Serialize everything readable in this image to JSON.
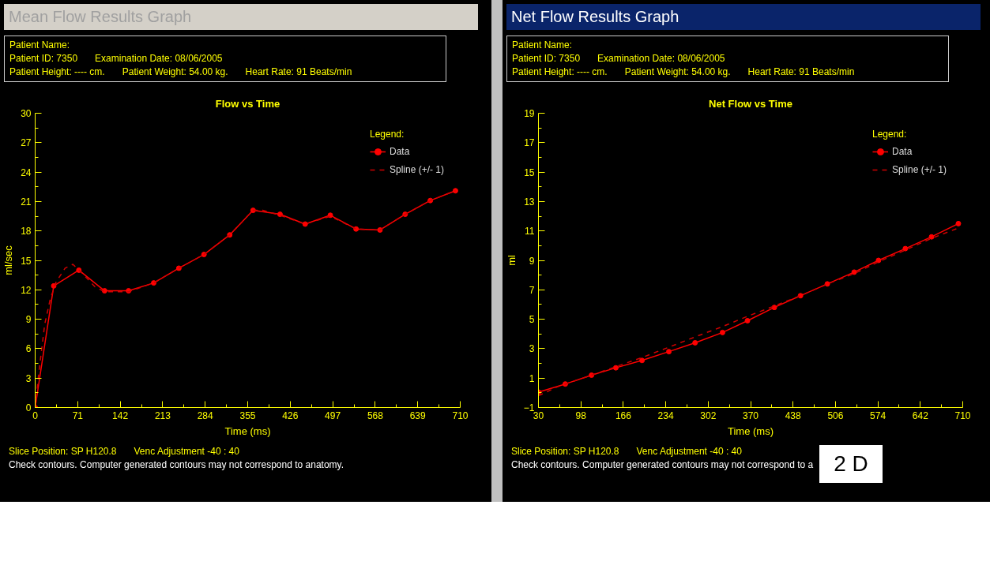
{
  "chart_data": [
    {
      "type": "line",
      "title": "Flow vs Time",
      "xlabel": "Time (ms)",
      "ylabel": "ml/sec",
      "legend_title": "Legend:",
      "legend": "top right",
      "grid": false,
      "xlim": [
        0,
        710
      ],
      "xticks": [
        0,
        71,
        142,
        213,
        284,
        355,
        426,
        497,
        568,
        639,
        710
      ],
      "ylim": [
        0,
        30
      ],
      "yticks": [
        0,
        3,
        6,
        9,
        12,
        15,
        18,
        21,
        24,
        27,
        30
      ],
      "series": [
        {
          "name": "Data",
          "color": "#ff0000",
          "marker": "circle",
          "line_style": "solid",
          "x": [
            0,
            31,
            73,
            116,
            156,
            198,
            240,
            282,
            325,
            364,
            409,
            451,
            493,
            536,
            576,
            618,
            660,
            702
          ],
          "values": [
            0,
            12.4,
            14.0,
            11.9,
            11.9,
            12.7,
            14.2,
            15.6,
            17.6,
            20.1,
            19.7,
            18.7,
            19.6,
            18.2,
            18.1,
            19.7,
            21.1,
            22.1
          ]
        },
        {
          "name": "Spline (+/- 1)",
          "color": "#d00000",
          "marker": "none",
          "line_style": "dashed",
          "x": [
            0,
            6,
            16,
            25,
            35,
            50,
            63,
            80,
            100,
            116,
            156,
            198,
            240,
            282,
            325,
            364,
            380,
            409,
            451,
            493,
            536,
            576,
            618,
            660,
            702
          ],
          "values": [
            0,
            3.5,
            8.5,
            11,
            12.8,
            14.2,
            14.6,
            13.6,
            12.3,
            11.8,
            11.8,
            12.7,
            14.2,
            15.6,
            17.6,
            20.1,
            20.1,
            19.6,
            18.7,
            19.5,
            18.2,
            18.1,
            19.7,
            21.1,
            22.1
          ]
        }
      ],
      "annotations": [
        "Mean Flow Results Graph",
        "Patient Name:",
        "Patient ID:  7350",
        "Examination Date:  08/06/2005",
        "Patient Height:  ----  cm.",
        "Patient Weight:  54.00 kg.",
        "Heart Rate:  91 Beats/min",
        "Slice Position: SP  H120.8",
        "Venc Adjustment -40 : 40",
        "Check contours. Computer generated contours may not correspond to anatomy."
      ]
    },
    {
      "type": "line",
      "title": "Net Flow vs Time",
      "xlabel": "Time (ms)",
      "ylabel": "ml",
      "legend_title": "Legend:",
      "legend": "top right",
      "grid": false,
      "xlim": [
        30,
        710
      ],
      "xticks": [
        30,
        98,
        166,
        234,
        302,
        370,
        438,
        506,
        574,
        642,
        710
      ],
      "ylim": [
        -1,
        19
      ],
      "yticks": [
        -1,
        1,
        3,
        5,
        7,
        9,
        11,
        13,
        15,
        17,
        19
      ],
      "series": [
        {
          "name": "Data",
          "color": "#ff0000",
          "marker": "circle",
          "line_style": "solid",
          "x": [
            30,
            73,
            115,
            154,
            196,
            239,
            281,
            325,
            365,
            408,
            450,
            493,
            536,
            575,
            618,
            660,
            703
          ],
          "values": [
            0.05,
            0.6,
            1.2,
            1.7,
            2.2,
            2.8,
            3.4,
            4.1,
            4.9,
            5.8,
            6.6,
            7.4,
            8.2,
            9.0,
            9.8,
            10.6,
            11.5
          ]
        },
        {
          "name": "Spline (+/- 1)",
          "color": "#d00000",
          "marker": "none",
          "line_style": "dashed",
          "x": [
            30,
            60,
            115,
            196,
            239,
            281,
            325,
            365,
            408,
            450,
            493,
            536,
            575,
            618,
            660,
            703
          ],
          "values": [
            -0.2,
            0.4,
            1.2,
            2.4,
            3.1,
            3.8,
            4.5,
            5.2,
            5.9,
            6.6,
            7.4,
            8.1,
            8.9,
            9.7,
            10.5,
            11.2
          ]
        }
      ],
      "annotations": [
        "Net Flow Results Graph",
        "Patient Name:",
        "Patient ID:  7350",
        "Examination Date:  08/06/2005",
        "Patient Height:  ----  cm.",
        "Patient Weight:  54.00 kg.",
        "Heart Rate:  91 Beats/min",
        "Slice Position: SP  H120.8",
        "Venc Adjustment -40 : 40",
        "Check contours. Computer generated contours may not correspond to a",
        "2 D"
      ]
    }
  ]
}
